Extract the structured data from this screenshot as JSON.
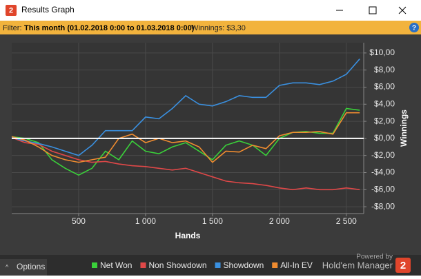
{
  "window": {
    "logo": "2",
    "title": "Results Graph",
    "filter_label": "Filter:",
    "filter_value": "This month (01.02.2018 0:00 to 01.03.2018 0:00)",
    "winnings": "Winnings: $3,30"
  },
  "footer": {
    "options": "Options",
    "powered": "Powered by",
    "brand": "Hold'em Manager",
    "logo": "2"
  },
  "chart_data": {
    "type": "line",
    "x_label": "Hands",
    "y_label": "Winnings",
    "grid": true,
    "zero_line": true,
    "xlim": [
      0,
      2630
    ],
    "ylim": [
      -8.8,
      11.2
    ],
    "xticks": [
      500,
      {
        "value": 1000,
        "label": "1 000"
      },
      {
        "value": 1500,
        "label": "1 500"
      },
      {
        "value": 2000,
        "label": "2 000"
      },
      {
        "value": 2500,
        "label": "2 500"
      }
    ],
    "yticks": [
      {
        "value": -8,
        "label": "-$8,00"
      },
      {
        "value": -6,
        "label": "-$6,00"
      },
      {
        "value": -4,
        "label": "-$4,00"
      },
      {
        "value": -2,
        "label": "-$2,00"
      },
      {
        "value": 0,
        "label": "$0,00"
      },
      {
        "value": 2,
        "label": "$2,00"
      },
      {
        "value": 4,
        "label": "$4,00"
      },
      {
        "value": 6,
        "label": "$6,00"
      },
      {
        "value": 8,
        "label": "$8,00"
      },
      {
        "value": 10,
        "label": "$10,00"
      }
    ],
    "x": [
      0,
      100,
      200,
      300,
      400,
      500,
      600,
      700,
      800,
      900,
      1000,
      1100,
      1200,
      1300,
      1400,
      1500,
      1600,
      1700,
      1800,
      1900,
      2000,
      2100,
      2200,
      2300,
      2400,
      2500,
      2600
    ],
    "series": [
      {
        "name": "Net Won",
        "color": "#3ad13a",
        "values": [
          0.2,
          0,
          -0.5,
          -2.5,
          -3.5,
          -4.3,
          -3.5,
          -1.5,
          -2.5,
          -0.3,
          -1.5,
          -1.8,
          -1,
          -0.5,
          -1.5,
          -2.5,
          -0.8,
          -0.3,
          -0.8,
          -2,
          0,
          0.7,
          0.8,
          0.6,
          0.6,
          3.5,
          3.3
        ]
      },
      {
        "name": "Non Showdown",
        "color": "#e04848",
        "values": [
          0.1,
          -0.5,
          -0.7,
          -1.5,
          -2,
          -2.5,
          -2.8,
          -2.7,
          -3,
          -3.2,
          -3.3,
          -3.5,
          -3.7,
          -3.5,
          -4,
          -4.5,
          -5,
          -5.2,
          -5.3,
          -5.5,
          -5.8,
          -6,
          -5.8,
          -6,
          -6,
          -5.8,
          -6
        ]
      },
      {
        "name": "Showdown",
        "color": "#3a90e0",
        "values": [
          0.1,
          -0.3,
          -0.6,
          -1,
          -1.5,
          -2,
          -0.8,
          0.9,
          0.9,
          0.9,
          2.5,
          2.3,
          3.5,
          5,
          4,
          3.8,
          4.3,
          5,
          4.8,
          4.8,
          6.2,
          6.5,
          6.5,
          6.3,
          6.7,
          7.5,
          9.3
        ]
      },
      {
        "name": "All-In EV",
        "color": "#f08c30",
        "values": [
          0.2,
          -0.2,
          -1,
          -2,
          -2.5,
          -2.8,
          -2.5,
          -2.2,
          0,
          0.5,
          -0.5,
          0,
          -0.5,
          -0.3,
          -1,
          -2.8,
          -1.5,
          -1.6,
          -0.8,
          -1.2,
          0.3,
          0.7,
          0.7,
          0.8,
          0.5,
          3,
          3
        ]
      }
    ]
  }
}
